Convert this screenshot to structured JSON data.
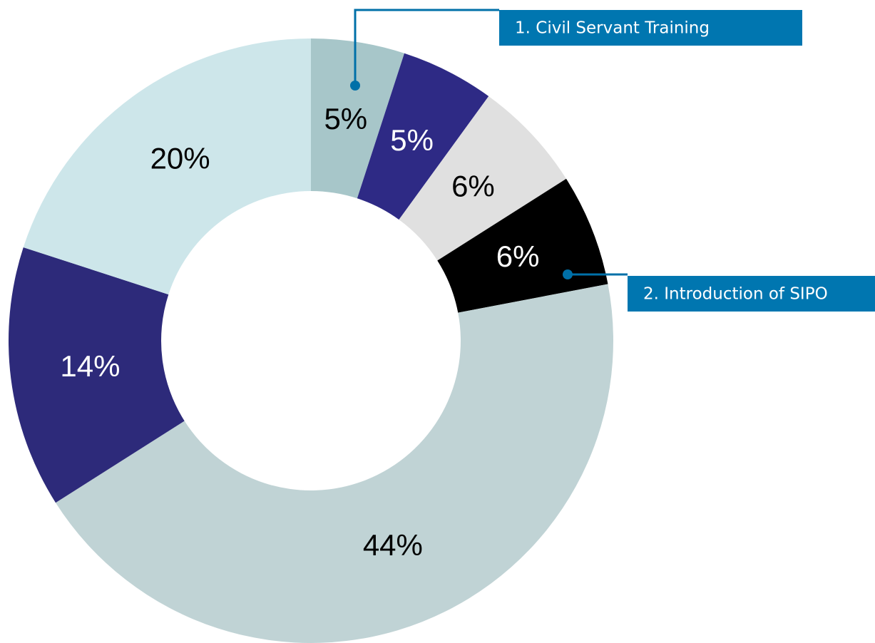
{
  "chart_data": {
    "type": "donut",
    "categories": [
      "1. Civil Servant Training",
      null,
      null,
      "2. Introduction of SIPO",
      null,
      null,
      null
    ],
    "values": [
      5,
      5,
      6,
      6,
      44,
      14,
      20
    ],
    "value_labels": [
      "5%",
      "5%",
      "6%",
      "6%",
      "44%",
      "14%",
      "20%"
    ],
    "colors": [
      "#a7c6c9",
      "#2e2a85",
      "#e0e0e0",
      "#000000",
      "#c0d3d5",
      "#2d2a7a",
      "#cde6ea"
    ]
  }
}
